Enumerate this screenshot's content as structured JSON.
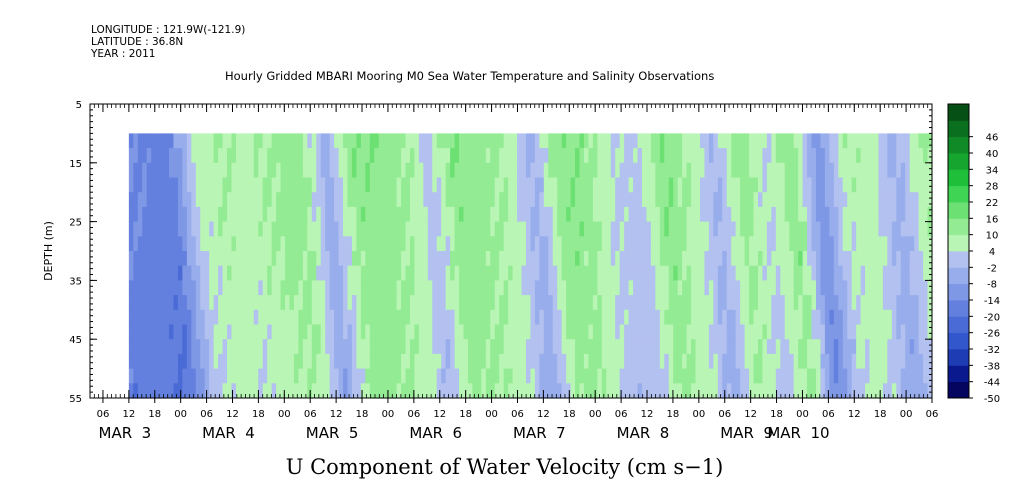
{
  "header": {
    "longitude": "LONGITUDE : 121.9W(-121.9)",
    "latitude": "LATITUDE : 36.8N",
    "year": "YEAR : 2011"
  },
  "chart_data": {
    "type": "heatmap",
    "title": "Hourly Gridded MBARI Mooring M0 Sea Water Temperature and Salinity Observations",
    "variable_title": "U Component of Water Velocity (cm s−1)",
    "ylabel": "DEPTH (m)",
    "y_axis": {
      "range": [
        5,
        55
      ],
      "inverted": true,
      "ticks": [
        5,
        15,
        25,
        35,
        45,
        55
      ]
    },
    "x_axis": {
      "range": [
        "2011-03-02 03:00",
        "2011-03-10 06:00"
      ],
      "hour_ticks": [
        "06",
        "12",
        "18",
        "00",
        "06",
        "12",
        "18",
        "00",
        "06",
        "12",
        "18",
        "00",
        "06",
        "12",
        "18",
        "00",
        "06",
        "12",
        "18",
        "00",
        "06",
        "12",
        "18",
        "00",
        "06",
        "12",
        "18",
        "00",
        "06",
        "12",
        "18",
        "00",
        "06"
      ],
      "day_labels": [
        "MAR 3",
        "MAR 4",
        "MAR 5",
        "MAR 6",
        "MAR 7",
        "MAR 8",
        "MAR 9",
        "MAR 10"
      ]
    },
    "data_extent": {
      "time": [
        "2011-03-02 12:00",
        "2011-03-10 06:00"
      ],
      "depth_m": [
        10,
        55
      ]
    },
    "approx_surface_u_by_6h": [
      -12,
      -14,
      -14,
      -16,
      6,
      10,
      8,
      12,
      14,
      -4,
      14,
      16,
      12,
      2,
      16,
      14,
      10,
      -4,
      16,
      14,
      4,
      2,
      16,
      10,
      -2,
      14,
      4,
      16,
      -12,
      8,
      8,
      -4,
      10
    ],
    "colorbar": {
      "levels": [
        -50,
        -44,
        -38,
        -32,
        -26,
        -20,
        -14,
        -8,
        -2,
        4,
        10,
        16,
        22,
        28,
        34,
        40,
        46
      ],
      "labels": [
        "46",
        "40",
        "34",
        "28",
        "22",
        "16",
        "10",
        "4",
        "-2",
        "-8",
        "-14",
        "-20",
        "-26",
        "-32",
        "-38",
        "-44",
        "-50"
      ],
      "negative_colors": [
        "#05055f",
        "#0a1a8e",
        "#1e3cb4",
        "#3256cc",
        "#4a6ad6",
        "#6480de",
        "#7f98e6",
        "#98adec",
        "#b3c1f0"
      ],
      "positive_colors": [
        "#b9f5b4",
        "#93eb94",
        "#6ce072",
        "#3fd453",
        "#1fbf3a",
        "#16a52f",
        "#0f8a26",
        "#0a6f1e",
        "#064f15"
      ]
    }
  }
}
